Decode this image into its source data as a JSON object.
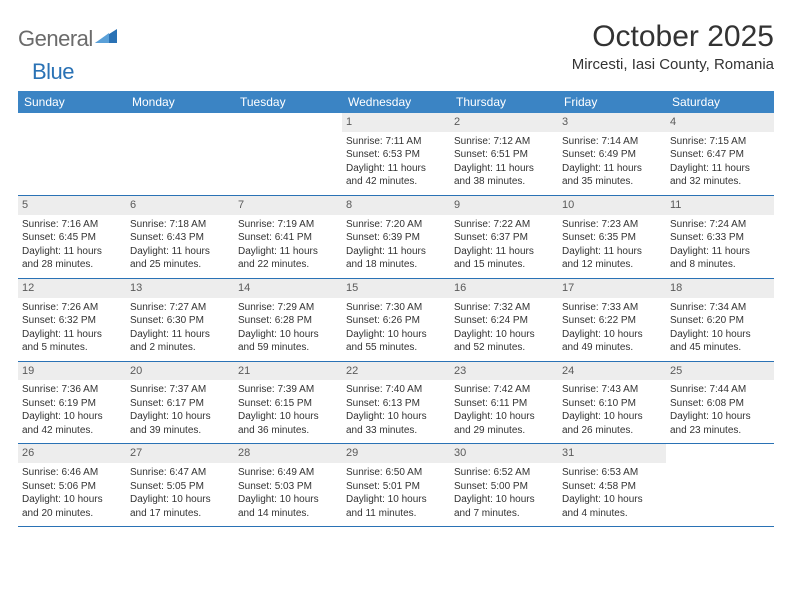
{
  "logo": {
    "general": "General",
    "blue": "Blue"
  },
  "title": "October 2025",
  "location": "Mircesti, Iasi County, Romania",
  "weekdays": [
    "Sunday",
    "Monday",
    "Tuesday",
    "Wednesday",
    "Thursday",
    "Friday",
    "Saturday"
  ],
  "header_bg": "#3b84c4",
  "border_color": "#2a72b5",
  "daynum_bg": "#ededed",
  "weeks": [
    [
      {
        "empty": true
      },
      {
        "empty": true
      },
      {
        "empty": true
      },
      {
        "n": "1",
        "sr": "Sunrise: 7:11 AM",
        "ss": "Sunset: 6:53 PM",
        "d1": "Daylight: 11 hours",
        "d2": "and 42 minutes."
      },
      {
        "n": "2",
        "sr": "Sunrise: 7:12 AM",
        "ss": "Sunset: 6:51 PM",
        "d1": "Daylight: 11 hours",
        "d2": "and 38 minutes."
      },
      {
        "n": "3",
        "sr": "Sunrise: 7:14 AM",
        "ss": "Sunset: 6:49 PM",
        "d1": "Daylight: 11 hours",
        "d2": "and 35 minutes."
      },
      {
        "n": "4",
        "sr": "Sunrise: 7:15 AM",
        "ss": "Sunset: 6:47 PM",
        "d1": "Daylight: 11 hours",
        "d2": "and 32 minutes."
      }
    ],
    [
      {
        "n": "5",
        "sr": "Sunrise: 7:16 AM",
        "ss": "Sunset: 6:45 PM",
        "d1": "Daylight: 11 hours",
        "d2": "and 28 minutes."
      },
      {
        "n": "6",
        "sr": "Sunrise: 7:18 AM",
        "ss": "Sunset: 6:43 PM",
        "d1": "Daylight: 11 hours",
        "d2": "and 25 minutes."
      },
      {
        "n": "7",
        "sr": "Sunrise: 7:19 AM",
        "ss": "Sunset: 6:41 PM",
        "d1": "Daylight: 11 hours",
        "d2": "and 22 minutes."
      },
      {
        "n": "8",
        "sr": "Sunrise: 7:20 AM",
        "ss": "Sunset: 6:39 PM",
        "d1": "Daylight: 11 hours",
        "d2": "and 18 minutes."
      },
      {
        "n": "9",
        "sr": "Sunrise: 7:22 AM",
        "ss": "Sunset: 6:37 PM",
        "d1": "Daylight: 11 hours",
        "d2": "and 15 minutes."
      },
      {
        "n": "10",
        "sr": "Sunrise: 7:23 AM",
        "ss": "Sunset: 6:35 PM",
        "d1": "Daylight: 11 hours",
        "d2": "and 12 minutes."
      },
      {
        "n": "11",
        "sr": "Sunrise: 7:24 AM",
        "ss": "Sunset: 6:33 PM",
        "d1": "Daylight: 11 hours",
        "d2": "and 8 minutes."
      }
    ],
    [
      {
        "n": "12",
        "sr": "Sunrise: 7:26 AM",
        "ss": "Sunset: 6:32 PM",
        "d1": "Daylight: 11 hours",
        "d2": "and 5 minutes."
      },
      {
        "n": "13",
        "sr": "Sunrise: 7:27 AM",
        "ss": "Sunset: 6:30 PM",
        "d1": "Daylight: 11 hours",
        "d2": "and 2 minutes."
      },
      {
        "n": "14",
        "sr": "Sunrise: 7:29 AM",
        "ss": "Sunset: 6:28 PM",
        "d1": "Daylight: 10 hours",
        "d2": "and 59 minutes."
      },
      {
        "n": "15",
        "sr": "Sunrise: 7:30 AM",
        "ss": "Sunset: 6:26 PM",
        "d1": "Daylight: 10 hours",
        "d2": "and 55 minutes."
      },
      {
        "n": "16",
        "sr": "Sunrise: 7:32 AM",
        "ss": "Sunset: 6:24 PM",
        "d1": "Daylight: 10 hours",
        "d2": "and 52 minutes."
      },
      {
        "n": "17",
        "sr": "Sunrise: 7:33 AM",
        "ss": "Sunset: 6:22 PM",
        "d1": "Daylight: 10 hours",
        "d2": "and 49 minutes."
      },
      {
        "n": "18",
        "sr": "Sunrise: 7:34 AM",
        "ss": "Sunset: 6:20 PM",
        "d1": "Daylight: 10 hours",
        "d2": "and 45 minutes."
      }
    ],
    [
      {
        "n": "19",
        "sr": "Sunrise: 7:36 AM",
        "ss": "Sunset: 6:19 PM",
        "d1": "Daylight: 10 hours",
        "d2": "and 42 minutes."
      },
      {
        "n": "20",
        "sr": "Sunrise: 7:37 AM",
        "ss": "Sunset: 6:17 PM",
        "d1": "Daylight: 10 hours",
        "d2": "and 39 minutes."
      },
      {
        "n": "21",
        "sr": "Sunrise: 7:39 AM",
        "ss": "Sunset: 6:15 PM",
        "d1": "Daylight: 10 hours",
        "d2": "and 36 minutes."
      },
      {
        "n": "22",
        "sr": "Sunrise: 7:40 AM",
        "ss": "Sunset: 6:13 PM",
        "d1": "Daylight: 10 hours",
        "d2": "and 33 minutes."
      },
      {
        "n": "23",
        "sr": "Sunrise: 7:42 AM",
        "ss": "Sunset: 6:11 PM",
        "d1": "Daylight: 10 hours",
        "d2": "and 29 minutes."
      },
      {
        "n": "24",
        "sr": "Sunrise: 7:43 AM",
        "ss": "Sunset: 6:10 PM",
        "d1": "Daylight: 10 hours",
        "d2": "and 26 minutes."
      },
      {
        "n": "25",
        "sr": "Sunrise: 7:44 AM",
        "ss": "Sunset: 6:08 PM",
        "d1": "Daylight: 10 hours",
        "d2": "and 23 minutes."
      }
    ],
    [
      {
        "n": "26",
        "sr": "Sunrise: 6:46 AM",
        "ss": "Sunset: 5:06 PM",
        "d1": "Daylight: 10 hours",
        "d2": "and 20 minutes."
      },
      {
        "n": "27",
        "sr": "Sunrise: 6:47 AM",
        "ss": "Sunset: 5:05 PM",
        "d1": "Daylight: 10 hours",
        "d2": "and 17 minutes."
      },
      {
        "n": "28",
        "sr": "Sunrise: 6:49 AM",
        "ss": "Sunset: 5:03 PM",
        "d1": "Daylight: 10 hours",
        "d2": "and 14 minutes."
      },
      {
        "n": "29",
        "sr": "Sunrise: 6:50 AM",
        "ss": "Sunset: 5:01 PM",
        "d1": "Daylight: 10 hours",
        "d2": "and 11 minutes."
      },
      {
        "n": "30",
        "sr": "Sunrise: 6:52 AM",
        "ss": "Sunset: 5:00 PM",
        "d1": "Daylight: 10 hours",
        "d2": "and 7 minutes."
      },
      {
        "n": "31",
        "sr": "Sunrise: 6:53 AM",
        "ss": "Sunset: 4:58 PM",
        "d1": "Daylight: 10 hours",
        "d2": "and 4 minutes."
      },
      {
        "empty": true
      }
    ]
  ]
}
